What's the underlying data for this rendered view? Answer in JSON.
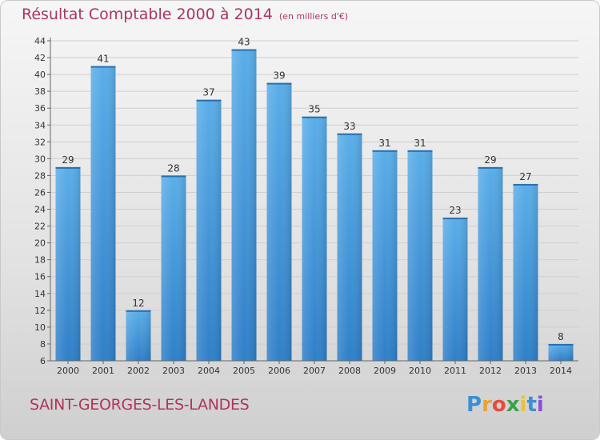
{
  "header": {
    "title": "Résultat Comptable 2000 à 2014",
    "unit": "(en milliers d'€)"
  },
  "commune": "SAINT-GEORGES-LES-LANDES",
  "logo": {
    "letters": [
      "P",
      "r",
      "o",
      "x",
      "i",
      "t",
      "i"
    ],
    "colors": [
      "#3a8fd6",
      "#e8a23a",
      "#e84b3a",
      "#3aa24a",
      "#e8c23a",
      "#3a8fd6",
      "#8a4fd6"
    ]
  },
  "colors": {
    "bar_top": "#5aaee8",
    "bar_bottom": "#2f7fc8",
    "title": "#b0355a"
  },
  "chart_data": {
    "type": "bar",
    "title": "Résultat Comptable 2000 à 2014",
    "subtitle": "(en milliers d'€)",
    "xlabel": "",
    "ylabel": "",
    "categories": [
      "2000",
      "2001",
      "2002",
      "2003",
      "2004",
      "2005",
      "2006",
      "2007",
      "2008",
      "2009",
      "2010",
      "2011",
      "2012",
      "2013",
      "2014"
    ],
    "values": [
      29,
      41,
      12,
      28,
      37,
      43,
      39,
      35,
      33,
      31,
      31,
      23,
      29,
      27,
      8
    ],
    "ylim": [
      6,
      44
    ],
    "yticks": [
      6,
      8,
      10,
      12,
      14,
      16,
      18,
      20,
      22,
      24,
      26,
      28,
      30,
      32,
      34,
      36,
      38,
      40,
      42,
      44
    ],
    "grid": true,
    "legend": "none"
  }
}
